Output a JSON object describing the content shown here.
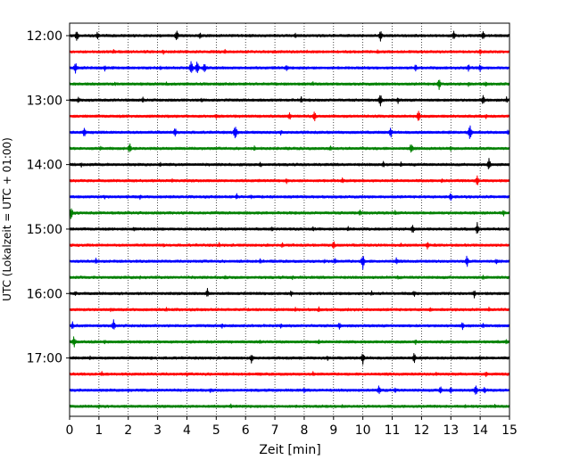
{
  "chart_data": {
    "type": "line",
    "subtype": "helicorder",
    "title": "",
    "xlabel": "Zeit  [min]",
    "ylabel": "UTC (Lokalzeit = UTC + 01:00)",
    "xlim": [
      0,
      15
    ],
    "x_ticks": [
      "0",
      "1",
      "2",
      "3",
      "4",
      "5",
      "6",
      "7",
      "8",
      "9",
      "10",
      "11",
      "12",
      "13",
      "14",
      "15"
    ],
    "y_ticks": [
      "12:00",
      "13:00",
      "14:00",
      "15:00",
      "16:00",
      "17:00"
    ],
    "y_tick_rows": [
      0,
      4,
      8,
      12,
      16,
      20
    ],
    "rows": [
      "12:00",
      "12:15",
      "12:30",
      "12:45",
      "13:00",
      "13:15",
      "13:30",
      "13:45",
      "14:00",
      "14:15",
      "14:30",
      "14:45",
      "15:00",
      "15:15",
      "15:30",
      "15:45",
      "16:00",
      "16:15",
      "16:30",
      "16:45",
      "17:00",
      "17:15",
      "17:30",
      "17:45"
    ],
    "row_colors": [
      "#000000",
      "#ff0000",
      "#0000ff",
      "#008000"
    ],
    "vertical_grid": "dotted",
    "events": [
      [
        [
          0.25,
          0.8
        ],
        [
          0.95,
          0.55
        ],
        [
          3.65,
          0.85
        ],
        [
          4.45,
          0.45
        ],
        [
          7.7,
          0.4
        ],
        [
          10.6,
          0.8
        ],
        [
          13.1,
          0.6
        ],
        [
          14.1,
          0.75
        ]
      ],
      [
        [
          1.5,
          0.3
        ],
        [
          3.2,
          0.35
        ],
        [
          5.3,
          0.35
        ],
        [
          8.1,
          0.3
        ],
        [
          10.5,
          0.35
        ],
        [
          14.0,
          0.4
        ]
      ],
      [
        [
          0.2,
          0.8
        ],
        [
          1.2,
          0.45
        ],
        [
          3.1,
          0.35
        ],
        [
          4.15,
          1.0
        ],
        [
          4.35,
          0.9
        ],
        [
          4.6,
          0.7
        ],
        [
          7.4,
          0.45
        ],
        [
          11.8,
          0.55
        ],
        [
          13.6,
          0.55
        ],
        [
          14.0,
          0.6
        ]
      ],
      [
        [
          1.55,
          0.3
        ],
        [
          3.3,
          0.3
        ],
        [
          8.3,
          0.3
        ],
        [
          12.6,
          0.75
        ],
        [
          13.6,
          0.35
        ],
        [
          14.2,
          0.4
        ]
      ],
      [
        [
          0.3,
          0.45
        ],
        [
          2.5,
          0.4
        ],
        [
          4.5,
          0.35
        ],
        [
          7.9,
          0.45
        ],
        [
          10.6,
          0.9
        ],
        [
          11.2,
          0.45
        ],
        [
          14.1,
          0.75
        ],
        [
          14.9,
          0.45
        ]
      ],
      [
        [
          5.0,
          0.35
        ],
        [
          7.5,
          0.55
        ],
        [
          8.35,
          0.75
        ],
        [
          11.9,
          0.85
        ],
        [
          14.2,
          0.35
        ]
      ],
      [
        [
          0.5,
          0.65
        ],
        [
          3.6,
          0.7
        ],
        [
          5.65,
          1.05
        ],
        [
          7.2,
          0.35
        ],
        [
          10.95,
          0.75
        ],
        [
          13.65,
          1.1
        ],
        [
          14.95,
          0.45
        ]
      ],
      [
        [
          1.05,
          0.35
        ],
        [
          2.05,
          0.75
        ],
        [
          6.3,
          0.35
        ],
        [
          8.9,
          0.4
        ],
        [
          11.65,
          0.8
        ],
        [
          13.0,
          0.35
        ]
      ],
      [
        [
          0.4,
          0.35
        ],
        [
          3.1,
          0.35
        ],
        [
          6.5,
          0.4
        ],
        [
          10.7,
          0.55
        ],
        [
          11.3,
          0.35
        ],
        [
          14.3,
          0.8
        ]
      ],
      [
        [
          3.5,
          0.35
        ],
        [
          7.4,
          0.4
        ],
        [
          9.3,
          0.45
        ],
        [
          12.7,
          0.35
        ],
        [
          13.9,
          0.8
        ]
      ],
      [
        [
          1.2,
          0.3
        ],
        [
          2.4,
          0.35
        ],
        [
          5.7,
          0.45
        ],
        [
          6.2,
          0.35
        ],
        [
          13.0,
          0.65
        ]
      ],
      [
        [
          0.05,
          0.95
        ],
        [
          9.9,
          0.5
        ],
        [
          11.1,
          0.35
        ],
        [
          14.8,
          0.45
        ]
      ],
      [
        [
          2.2,
          0.35
        ],
        [
          6.9,
          0.35
        ],
        [
          8.3,
          0.4
        ],
        [
          9.5,
          0.4
        ],
        [
          11.7,
          0.65
        ],
        [
          13.9,
          0.85
        ]
      ],
      [
        [
          3.2,
          0.3
        ],
        [
          5.1,
          0.35
        ],
        [
          7.25,
          0.4
        ],
        [
          9.0,
          0.65
        ],
        [
          11.3,
          0.35
        ],
        [
          12.2,
          0.55
        ]
      ],
      [
        [
          0.9,
          0.4
        ],
        [
          6.5,
          0.35
        ],
        [
          8.7,
          0.35
        ],
        [
          9.05,
          0.45
        ],
        [
          10.0,
          1.0
        ],
        [
          11.15,
          0.55
        ],
        [
          13.55,
          0.8
        ],
        [
          14.55,
          0.45
        ]
      ],
      [
        [
          2.4,
          0.3
        ],
        [
          5.3,
          0.3
        ],
        [
          7.6,
          0.3
        ],
        [
          11.2,
          0.3
        ],
        [
          14.1,
          0.35
        ]
      ],
      [
        [
          0.2,
          0.35
        ],
        [
          4.7,
          0.65
        ],
        [
          7.55,
          0.45
        ],
        [
          10.3,
          0.35
        ],
        [
          11.75,
          0.5
        ],
        [
          13.8,
          0.55
        ]
      ],
      [
        [
          1.4,
          0.3
        ],
        [
          3.3,
          0.3
        ],
        [
          7.7,
          0.3
        ],
        [
          8.5,
          0.4
        ],
        [
          12.3,
          0.35
        ],
        [
          14.3,
          0.35
        ]
      ],
      [
        [
          0.1,
          0.55
        ],
        [
          1.5,
          0.75
        ],
        [
          5.2,
          0.4
        ],
        [
          7.2,
          0.35
        ],
        [
          9.2,
          0.5
        ],
        [
          13.4,
          0.55
        ],
        [
          14.1,
          0.45
        ]
      ],
      [
        [
          0.15,
          0.8
        ],
        [
          1.2,
          0.35
        ],
        [
          6.5,
          0.3
        ],
        [
          8.5,
          0.35
        ],
        [
          11.8,
          0.35
        ],
        [
          14.9,
          0.4
        ]
      ],
      [
        [
          0.7,
          0.35
        ],
        [
          2.8,
          0.3
        ],
        [
          6.2,
          0.7
        ],
        [
          8.8,
          0.35
        ],
        [
          10.0,
          0.85
        ],
        [
          11.75,
          0.75
        ],
        [
          14.0,
          0.4
        ]
      ],
      [
        [
          1.1,
          0.35
        ],
        [
          4.0,
          0.3
        ],
        [
          8.3,
          0.35
        ],
        [
          12.5,
          0.3
        ],
        [
          14.2,
          0.4
        ]
      ],
      [
        [
          2.0,
          0.3
        ],
        [
          4.8,
          0.35
        ],
        [
          8.0,
          0.4
        ],
        [
          10.55,
          0.75
        ],
        [
          11.1,
          0.4
        ],
        [
          12.65,
          0.65
        ],
        [
          13.0,
          0.5
        ],
        [
          13.85,
          0.8
        ],
        [
          14.15,
          0.5
        ]
      ],
      [
        [
          1.0,
          0.3
        ],
        [
          5.5,
          0.3
        ],
        [
          9.3,
          0.3
        ],
        [
          13.5,
          0.3
        ],
        [
          14.5,
          0.3
        ]
      ]
    ]
  }
}
